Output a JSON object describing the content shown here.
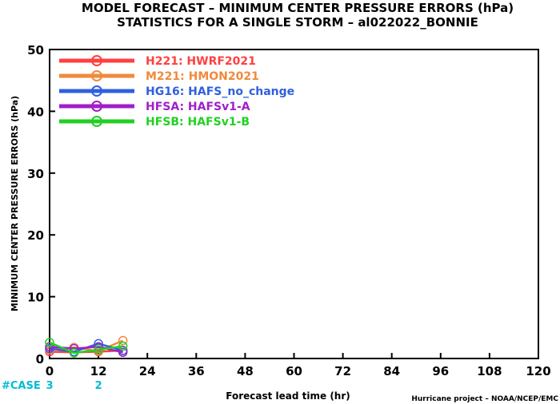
{
  "chart_data": {
    "type": "line",
    "title": "MODEL FORECAST – MINIMUM CENTER PRESSURE ERRORS (hPa)",
    "subtitle": "STATISTICS FOR A SINGLE STORM – al022022_BONNIE",
    "xlabel": "Forecast lead time (hr)",
    "ylabel": "MINIMUM CENTER PRESSURE ERRORS (hPa)",
    "xlim": [
      0,
      120
    ],
    "ylim": [
      0,
      50
    ],
    "x_ticks": [
      "0",
      "12",
      "24",
      "36",
      "48",
      "60",
      "72",
      "84",
      "96",
      "108",
      "120"
    ],
    "y_ticks": [
      "0",
      "10",
      "20",
      "30",
      "40",
      "50"
    ],
    "x": [
      0,
      6,
      12,
      18
    ],
    "series": [
      {
        "name": "H221: HWRF2021",
        "color": "#ff4040",
        "values": [
          1.1,
          1.0,
          1.1,
          1.3
        ]
      },
      {
        "name": "M221: HMON2021",
        "color": "#f08a3c",
        "values": [
          1.4,
          1.8,
          1.2,
          2.9
        ]
      },
      {
        "name": "HG16: HAFS_no_change",
        "color": "#2f5fe0",
        "values": [
          1.6,
          1.1,
          2.4,
          1.3
        ]
      },
      {
        "name": "HFSA: HAFSv1-A",
        "color": "#a020c8",
        "values": [
          1.9,
          1.6,
          1.9,
          1.0
        ]
      },
      {
        "name": "HFSB: HAFSv1-B",
        "color": "#22d022",
        "values": [
          2.6,
          0.9,
          1.4,
          2.0
        ]
      }
    ],
    "cases": {
      "label": "#CASE",
      "x": [
        0,
        12
      ],
      "counts": [
        "3",
        "2"
      ]
    },
    "grid": false,
    "legend_position": "top-left"
  },
  "credit": "Hurricane project – NOAA/NCEP/EMC"
}
